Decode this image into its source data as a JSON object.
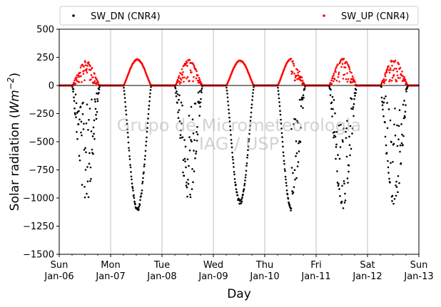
{
  "chart_data": {
    "type": "scatter",
    "xlabel": "Day",
    "ylabel_prefix": "Solar radiation (",
    "ylabel_unit": "Wm",
    "ylabel_exp": "−2",
    "ylabel_suffix": ")",
    "ylim": [
      -1500,
      500
    ],
    "yticks": [
      500,
      250,
      0,
      -250,
      -500,
      -750,
      -1000,
      -1250,
      -1500
    ],
    "ytick_labels": [
      "500",
      "250",
      "0",
      "−250",
      "−500",
      "−750",
      "−1000",
      "−1250",
      "−1500"
    ],
    "xlim": [
      "2019-01-06",
      "2019-01-13"
    ],
    "xticks": [
      {
        "line1": "Sun",
        "line2": "Jan-06"
      },
      {
        "line1": "Mon",
        "line2": "Jan-07"
      },
      {
        "line1": "Tue",
        "line2": "Jan-08"
      },
      {
        "line1": "Wed",
        "line2": "Jan-09"
      },
      {
        "line1": "Thu",
        "line2": "Jan-10"
      },
      {
        "line1": "Fri",
        "line2": "Jan-11"
      },
      {
        "line1": "Sat",
        "line2": "Jan-12"
      },
      {
        "line1": "Sun",
        "line2": "Jan-13"
      }
    ],
    "grid": "vertical",
    "zero_line": true,
    "legend_position": "top, above plot",
    "watermark": [
      "Grupo de Micrometeorologia",
      "IAG / USP"
    ],
    "series": [
      {
        "name": "SW_DN (CNR4)",
        "color": "#000000",
        "marker": "dot",
        "days": [
          {
            "date": "2019-01-06",
            "peak": -1050,
            "style": "cloudy"
          },
          {
            "date": "2019-01-07",
            "peak": -1100,
            "style": "clear"
          },
          {
            "date": "2019-01-08",
            "peak": -1020,
            "style": "cloudy"
          },
          {
            "date": "2019-01-09",
            "peak": -1040,
            "style": "clear"
          },
          {
            "date": "2019-01-10",
            "peak": -1120,
            "style": "mixed"
          },
          {
            "date": "2019-01-11",
            "peak": -1100,
            "style": "cloudy"
          },
          {
            "date": "2019-01-12",
            "peak": -1100,
            "style": "cloudy"
          }
        ]
      },
      {
        "name": "SW_UP (CNR4)",
        "color": "#ff0000",
        "marker": "dot",
        "days": [
          {
            "date": "2019-01-06",
            "peak": 220,
            "style": "cloudy"
          },
          {
            "date": "2019-01-07",
            "peak": 230,
            "style": "clear"
          },
          {
            "date": "2019-01-08",
            "peak": 230,
            "style": "cloudy"
          },
          {
            "date": "2019-01-09",
            "peak": 220,
            "style": "clear"
          },
          {
            "date": "2019-01-10",
            "peak": 240,
            "style": "mixed"
          },
          {
            "date": "2019-01-11",
            "peak": 240,
            "style": "cloudy"
          },
          {
            "date": "2019-01-12",
            "peak": 240,
            "style": "cloudy"
          }
        ]
      }
    ]
  }
}
